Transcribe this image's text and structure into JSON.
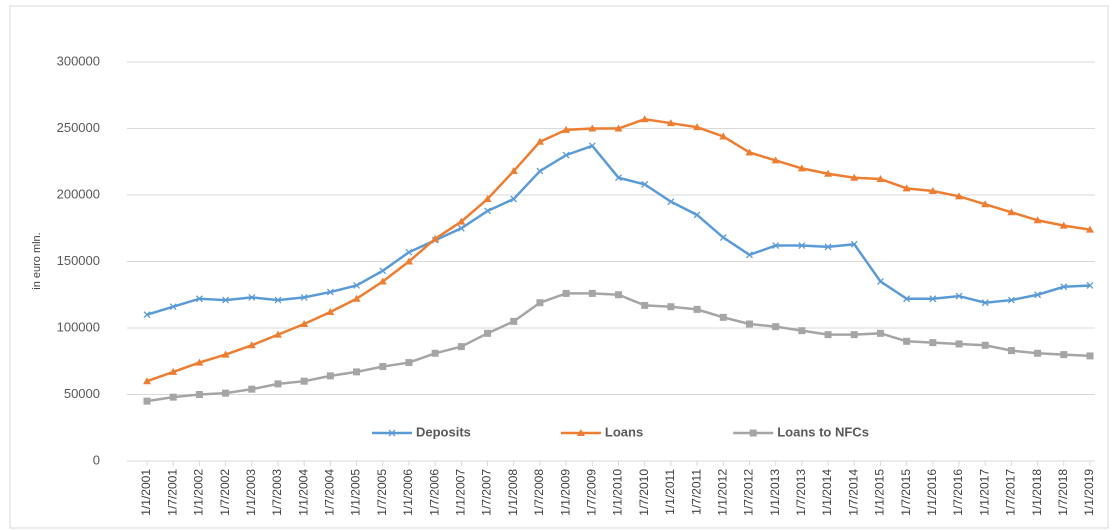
{
  "chart_data": {
    "type": "line",
    "y_label": "in euro mln.",
    "categories": [
      "1/1/2001",
      "1/7/2001",
      "1/1/2002",
      "1/7/2002",
      "1/1/2003",
      "1/7/2003",
      "1/1/2004",
      "1/7/2004",
      "1/1/2005",
      "1/7/2005",
      "1/1/2006",
      "1/7/2006",
      "1/1/2007",
      "1/7/2007",
      "1/1/2008",
      "1/7/2008",
      "1/1/2009",
      "1/7/2009",
      "1/1/2010",
      "1/7/2010",
      "1/1/2011",
      "1/7/2011",
      "1/1/2012",
      "1/7/2012",
      "1/1/2013",
      "1/7/2013",
      "1/1/2014",
      "1/7/2014",
      "1/1/2015",
      "1/7/2015",
      "1/1/2016",
      "1/7/2016",
      "1/1/2017",
      "1/7/2017",
      "1/1/2018",
      "1/7/2018",
      "1/1/2019"
    ],
    "series": [
      {
        "name": "Deposits",
        "color": "#5b9bd5",
        "marker": "x",
        "values": [
          110000,
          116000,
          122000,
          121000,
          123000,
          121000,
          123000,
          127000,
          132000,
          143000,
          157000,
          166000,
          175000,
          188000,
          197000,
          218000,
          230000,
          237000,
          213000,
          208000,
          195000,
          185000,
          168000,
          155000,
          162000,
          162000,
          161000,
          163000,
          135000,
          122000,
          122000,
          124000,
          119000,
          121000,
          125000,
          131000,
          132000
        ]
      },
      {
        "name": "Loans",
        "color": "#ed7d31",
        "marker": "triangle",
        "values": [
          60000,
          67000,
          74000,
          80000,
          87000,
          95000,
          103000,
          112000,
          122000,
          135000,
          150000,
          167000,
          180000,
          197000,
          218000,
          240000,
          249000,
          250000,
          250000,
          257000,
          254000,
          251000,
          244000,
          232000,
          226000,
          220000,
          216000,
          213000,
          212000,
          205000,
          203000,
          199000,
          193000,
          187000,
          181000,
          177000,
          174000
        ]
      },
      {
        "name": "Loans to NFCs",
        "color": "#a5a5a5",
        "marker": "square",
        "values": [
          45000,
          48000,
          50000,
          51000,
          54000,
          58000,
          60000,
          64000,
          67000,
          71000,
          74000,
          81000,
          86000,
          96000,
          105000,
          119000,
          126000,
          126000,
          125000,
          117000,
          116000,
          114000,
          108000,
          103000,
          101000,
          98000,
          95000,
          95000,
          96000,
          90000,
          89000,
          88000,
          87000,
          83000,
          81000,
          80000,
          79000
        ]
      }
    ],
    "ylim": [
      0,
      300000
    ],
    "yticks": [
      0,
      50000,
      100000,
      150000,
      200000,
      250000,
      300000
    ],
    "grid": true,
    "legend": "bottom"
  }
}
